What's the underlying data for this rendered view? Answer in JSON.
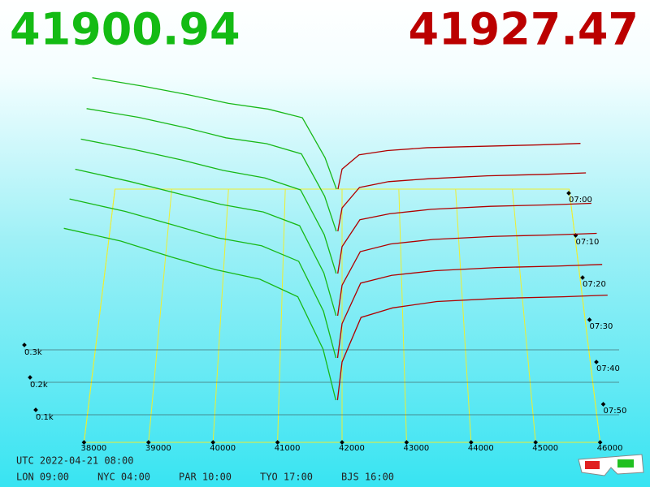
{
  "chart_data": {
    "type": "depth3d",
    "bid_price": 41900.94,
    "ask_price": 41927.47,
    "bid_color": "#18b818",
    "ask_color": "#b00000",
    "categories": [
      "07:00",
      "07:10",
      "07:20",
      "07:30",
      "07:40",
      "07:50"
    ],
    "xlim": [
      38000,
      46000
    ],
    "xticks": [
      38000,
      39000,
      40000,
      41000,
      42000,
      43000,
      44000,
      45000,
      46000
    ],
    "zticks": [
      {
        "value": 100,
        "label": "0.1k"
      },
      {
        "value": 200,
        "label": "0.2k"
      },
      {
        "value": 300,
        "label": "0.3k"
      }
    ],
    "bid_prices": [
      37600,
      38500,
      39300,
      40000,
      40700,
      41300,
      41700,
      41900.94
    ],
    "bid_series": [
      [
        390,
        360,
        330,
        300,
        280,
        250,
        110,
        0
      ],
      [
        420,
        390,
        355,
        320,
        300,
        265,
        120,
        0
      ],
      [
        450,
        415,
        380,
        345,
        320,
        280,
        130,
        0
      ],
      [
        480,
        440,
        400,
        365,
        340,
        295,
        140,
        0
      ],
      [
        510,
        470,
        425,
        385,
        360,
        310,
        150,
        0
      ],
      [
        540,
        500,
        450,
        410,
        380,
        325,
        160,
        0
      ]
    ],
    "ask_prices": [
      41927.47,
      42000,
      42300,
      42800,
      43500,
      44500,
      45500,
      46200
    ],
    "ask_series": [
      [
        0,
        70,
        120,
        135,
        145,
        150,
        155,
        160
      ],
      [
        0,
        80,
        150,
        170,
        180,
        190,
        195,
        200
      ],
      [
        0,
        90,
        180,
        200,
        215,
        225,
        230,
        235
      ],
      [
        0,
        100,
        210,
        235,
        250,
        260,
        265,
        270
      ],
      [
        0,
        110,
        240,
        265,
        280,
        290,
        295,
        300
      ],
      [
        0,
        120,
        260,
        290,
        310,
        320,
        325,
        330
      ]
    ],
    "utc": "UTC 2022-04-21 08:00",
    "clocks": [
      "LON 09:00",
      "NYC 04:00",
      "PAR 10:00",
      "TYO 17:00",
      "BJS 16:00"
    ]
  }
}
